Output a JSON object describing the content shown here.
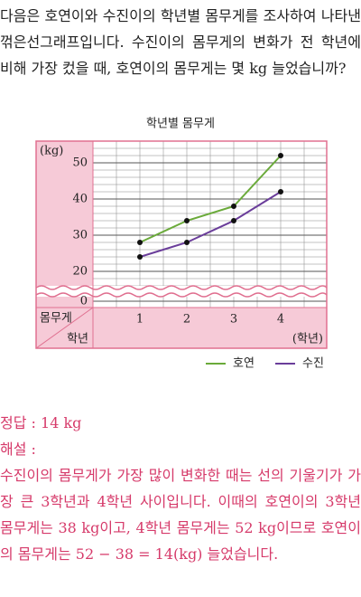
{
  "question": "다음은 호연이와 수진이의 학년별 몸무게를 조사하여 나타낸 꺾은선그래프입니다. 수진이의 몸무게의 변화가 전 학년에 비해 가장 컸을 때, 호연이의 몸무게는 몇 kg 늘었습니까?",
  "chart_data": {
    "type": "line",
    "title": "학년별 몸무게",
    "y_unit": "(kg)",
    "x_unit": "(학년)",
    "corner_top": "몸무게",
    "corner_bottom": "학년",
    "categories": [
      "1",
      "2",
      "3",
      "4"
    ],
    "series": [
      {
        "name": "호연",
        "color": "#6aaa3a",
        "values": [
          28,
          34,
          38,
          52
        ]
      },
      {
        "name": "수진",
        "color": "#6a3d9a",
        "values": [
          24,
          28,
          34,
          42
        ]
      }
    ],
    "ylim": [
      16,
      56
    ],
    "yticks": [
      0,
      20,
      30,
      40,
      50
    ],
    "minor_yticks": [
      16,
      18,
      20,
      22,
      24,
      26,
      28,
      30,
      32,
      34,
      36,
      38,
      40,
      42,
      44,
      46,
      48,
      50,
      52,
      54,
      56
    ],
    "axis_break": true,
    "grid": true,
    "legend": "bottom-right"
  },
  "answer": {
    "label": "정답 :",
    "text": "14 kg"
  },
  "explanation": {
    "label": "해설 :",
    "text": "수진이의 몸무게가 가장 많이 변화한 때는 선의 기울기가 가장 큰 3학년과 4학년 사이입니다. 이때의 호연이의 3학년 몸무게는 38 kg이고, 4학년 몸무게는 52 kg이므로 호연이의 몸무게는 52 − 38 = 14(kg) 늘었습니다."
  }
}
